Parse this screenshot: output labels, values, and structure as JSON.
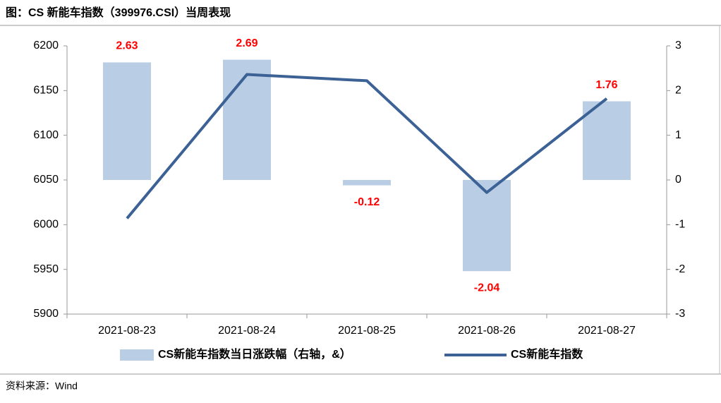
{
  "chart_data": {
    "type": "combo",
    "title": "图：CS 新能车指数（399976.CSI）当周表现",
    "source": "资料来源：Wind",
    "categories": [
      "2021-08-23",
      "2021-08-24",
      "2021-08-25",
      "2021-08-26",
      "2021-08-27"
    ],
    "series": [
      {
        "name": "CS新能车指数当日涨跌幅（右轴，&）",
        "type": "bar",
        "axis": "y2",
        "color": "#b9cde5",
        "values": [
          2.63,
          2.69,
          -0.12,
          -2.04,
          1.76
        ],
        "label_color": "#ff0000"
      },
      {
        "name": "CS新能车指数",
        "type": "line",
        "axis": "y",
        "color": "#3b6195",
        "values": [
          6007,
          6168,
          6161,
          6036,
          6141
        ]
      }
    ],
    "ylim": [
      5900,
      6200
    ],
    "yticks": [
      5900,
      5950,
      6000,
      6050,
      6100,
      6150,
      6200
    ],
    "y2lim": [
      -3,
      3
    ],
    "y2ticks": [
      -3,
      -2,
      -1,
      0,
      1,
      2,
      3
    ],
    "grid": false,
    "legend": "bottom"
  }
}
